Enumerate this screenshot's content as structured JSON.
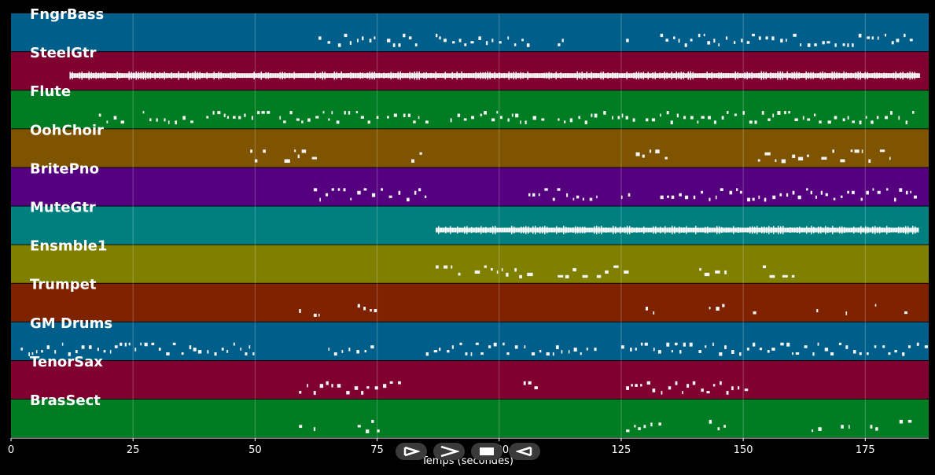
{
  "x_axis": {
    "label": "Temps (secondes)",
    "min": 0,
    "max": 188,
    "ticks": [
      0,
      25,
      50,
      75,
      100,
      125,
      150,
      175
    ]
  },
  "tracks": [
    {
      "name": "FngrBass",
      "color": "#005f8a",
      "notes": [
        [
          63,
          65
        ],
        [
          67,
          75
        ],
        [
          77,
          83
        ],
        [
          87,
          107
        ],
        [
          112,
          113
        ],
        [
          126,
          127
        ],
        [
          133,
          186
        ]
      ]
    },
    {
      "name": "SteelGtr",
      "color": "#80002f",
      "notes": [
        [
          12,
          186
        ]
      ]
    },
    {
      "name": "Flute",
      "color": "#007d22",
      "notes": [
        [
          18,
          23
        ],
        [
          27,
          37
        ],
        [
          40,
          53
        ],
        [
          55,
          75
        ],
        [
          77,
          85
        ],
        [
          90,
          110
        ],
        [
          112,
          128
        ],
        [
          130,
          186
        ]
      ]
    },
    {
      "name": "OohChoir",
      "color": "#7f5400",
      "notes": [
        [
          49,
          52
        ],
        [
          56,
          62
        ],
        [
          82,
          84
        ],
        [
          128,
          134
        ],
        [
          153,
          158
        ],
        [
          160,
          164
        ],
        [
          166,
          171
        ],
        [
          172,
          176
        ],
        [
          178,
          180
        ]
      ]
    },
    {
      "name": "BritePno",
      "color": "#55007f",
      "notes": [
        [
          62,
          85
        ],
        [
          106,
          120
        ],
        [
          125,
          127
        ],
        [
          133,
          186
        ]
      ]
    },
    {
      "name": "MuteGtr",
      "color": "#007f7f",
      "notes": [
        [
          87,
          186
        ]
      ]
    },
    {
      "name": "Ensmble1",
      "color": "#7f7f00",
      "notes": [
        [
          87,
          92
        ],
        [
          95,
          106
        ],
        [
          112,
          118
        ],
        [
          120,
          126
        ],
        [
          141,
          147
        ],
        [
          154,
          156
        ],
        [
          158,
          160
        ]
      ]
    },
    {
      "name": "Trumpet",
      "color": "#7f2200",
      "notes": [
        [
          59,
          60
        ],
        [
          62,
          63
        ],
        [
          71,
          75
        ],
        [
          130,
          132
        ],
        [
          143,
          147
        ],
        [
          152,
          153
        ],
        [
          165,
          166
        ],
        [
          171,
          172
        ],
        [
          177,
          178
        ],
        [
          183,
          184
        ]
      ]
    },
    {
      "name": "GM Drums",
      "color": "#005f8a",
      "notes": [
        [
          2,
          50
        ],
        [
          65,
          75
        ],
        [
          85,
          120
        ],
        [
          125,
          188
        ]
      ]
    },
    {
      "name": "TenorSax",
      "color": "#80002f",
      "notes": [
        [
          59,
          80
        ],
        [
          105,
          108
        ],
        [
          126,
          152
        ]
      ]
    },
    {
      "name": "BrasSect",
      "color": "#007d22",
      "notes": [
        [
          59,
          60
        ],
        [
          62,
          63
        ],
        [
          71,
          75
        ],
        [
          126,
          133
        ],
        [
          143,
          146
        ],
        [
          164,
          166
        ],
        [
          170,
          172
        ],
        [
          176,
          178
        ],
        [
          182,
          184
        ]
      ]
    }
  ],
  "controls": [
    {
      "name": "play-button",
      "icon": "play-icon"
    },
    {
      "name": "forward-button",
      "icon": "forward-icon"
    },
    {
      "name": "stop-button",
      "icon": "stop-icon"
    },
    {
      "name": "rewind-button",
      "icon": "rewind-icon"
    }
  ]
}
